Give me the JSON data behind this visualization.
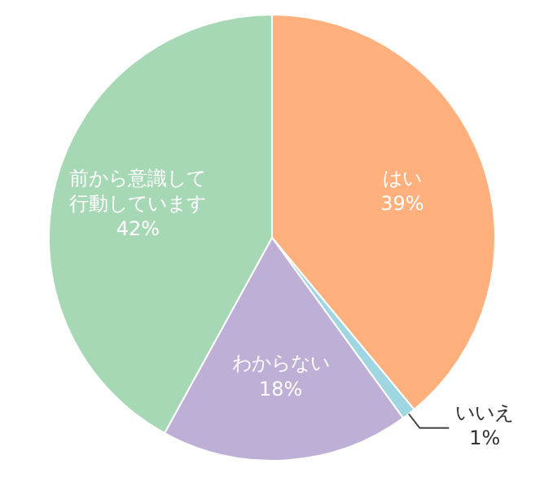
{
  "chart_data": {
    "type": "pie",
    "categories": [
      "はい",
      "いいえ",
      "わからない",
      "前から意識して行動しています"
    ],
    "values": [
      39,
      1,
      18,
      42
    ],
    "value_labels": [
      "39%",
      "1%",
      "18%",
      "42%"
    ],
    "colors": [
      "#ffb07c",
      "#9fd6e2",
      "#bdafd5",
      "#a6d8b6"
    ]
  }
}
